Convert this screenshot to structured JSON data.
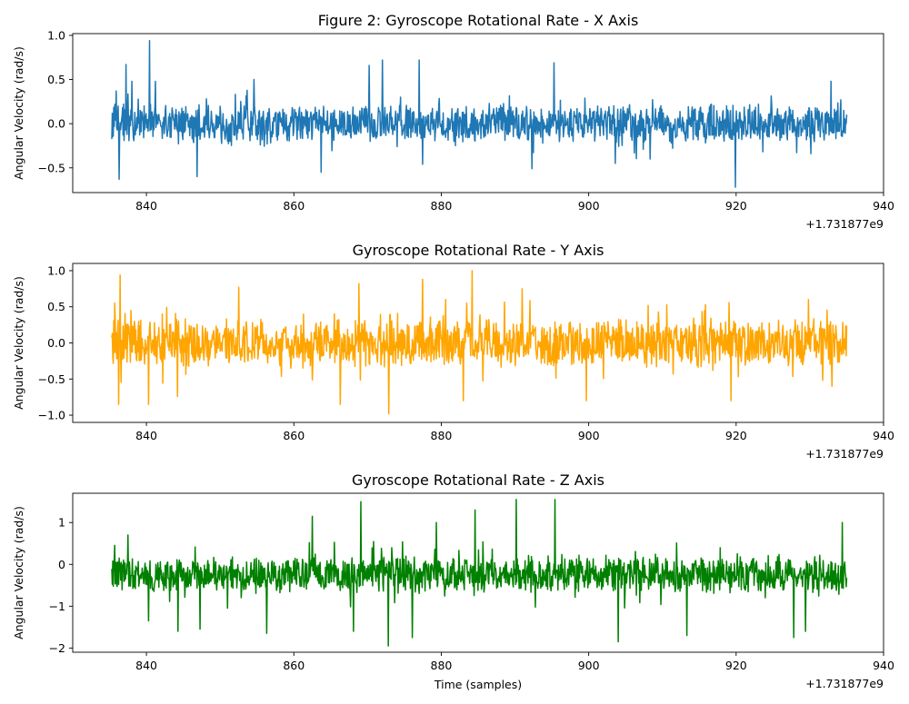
{
  "chart_data": [
    {
      "type": "line",
      "title": "Figure 2: Gyroscope Rotational Rate - X Axis",
      "xlabel": "",
      "ylabel": "Angular Velocity (rad/s)",
      "x_offset_label": "+1.731877e9",
      "xlim": [
        830,
        940
      ],
      "ylim": [
        -0.78,
        1.02
      ],
      "xticks": [
        {
          "v": 840,
          "label": "840"
        },
        {
          "v": 860,
          "label": "860"
        },
        {
          "v": 880,
          "label": "880"
        },
        {
          "v": 900,
          "label": "900"
        },
        {
          "v": 920,
          "label": "920"
        },
        {
          "v": 940,
          "label": "940"
        }
      ],
      "yticks": [
        {
          "v": -0.5,
          "label": "−0.5"
        },
        {
          "v": 0,
          "label": "0.0"
        },
        {
          "v": 0.5,
          "label": "0.5"
        },
        {
          "v": 1,
          "label": "1.0"
        }
      ],
      "color": "#1f77b4",
      "series": [
        {
          "x_start": 835.3,
          "x_end": 935.0,
          "amplitude_typical": 0.2,
          "peaks": [
            [
              835.9,
              0.37
            ],
            [
              836.3,
              -0.63
            ],
            [
              837.2,
              0.67
            ],
            [
              838.0,
              0.48
            ],
            [
              840.4,
              0.94
            ],
            [
              841.2,
              0.48
            ],
            [
              846.9,
              -0.6
            ],
            [
              854.6,
              0.5
            ],
            [
              863.7,
              -0.55
            ],
            [
              870.2,
              0.66
            ],
            [
              872.0,
              0.72
            ],
            [
              877.0,
              0.72
            ],
            [
              877.5,
              -0.46
            ],
            [
              892.3,
              -0.51
            ],
            [
              895.3,
              0.69
            ],
            [
              903.6,
              -0.45
            ],
            [
              908.3,
              -0.4
            ],
            [
              919.9,
              -0.72
            ],
            [
              932.9,
              0.48
            ]
          ]
        }
      ]
    },
    {
      "type": "line",
      "title": "Gyroscope Rotational Rate - Y Axis",
      "xlabel": "",
      "ylabel": "Angular Velocity (rad/s)",
      "x_offset_label": "+1.731877e9",
      "xlim": [
        830,
        940
      ],
      "ylim": [
        -1.1,
        1.1
      ],
      "xticks": [
        {
          "v": 840,
          "label": "840"
        },
        {
          "v": 860,
          "label": "860"
        },
        {
          "v": 880,
          "label": "880"
        },
        {
          "v": 900,
          "label": "900"
        },
        {
          "v": 920,
          "label": "920"
        },
        {
          "v": 940,
          "label": "940"
        }
      ],
      "yticks": [
        {
          "v": -1,
          "label": "−1.0"
        },
        {
          "v": -0.5,
          "label": "−0.5"
        },
        {
          "v": 0,
          "label": "0.0"
        },
        {
          "v": 0.5,
          "label": "0.5"
        },
        {
          "v": 1,
          "label": "1.0"
        }
      ],
      "color": "#ffa500",
      "series": [
        {
          "x_start": 835.3,
          "x_end": 935.0,
          "amplitude_typical": 0.3,
          "peaks": [
            [
              835.7,
              0.55
            ],
            [
              836.2,
              -0.85
            ],
            [
              836.4,
              0.94
            ],
            [
              840.3,
              -0.85
            ],
            [
              844.2,
              -0.74
            ],
            [
              852.5,
              0.77
            ],
            [
              866.3,
              -0.85
            ],
            [
              868.8,
              0.82
            ],
            [
              872.9,
              -0.98
            ],
            [
              877.5,
              0.88
            ],
            [
              880.6,
              0.6
            ],
            [
              884.2,
              1.0
            ],
            [
              883.0,
              -0.8
            ],
            [
              891.0,
              0.75
            ],
            [
              899.7,
              -0.8
            ],
            [
              919.3,
              -0.8
            ],
            [
              929.8,
              0.6
            ],
            [
              933.0,
              -0.6
            ]
          ]
        }
      ]
    },
    {
      "type": "line",
      "title": "Gyroscope Rotational Rate - Z Axis",
      "xlabel": "Time (samples)",
      "ylabel": "Angular Velocity (rad/s)",
      "x_offset_label": "+1.731877e9",
      "xlim": [
        830,
        940
      ],
      "ylim": [
        -2.1,
        1.7
      ],
      "xticks": [
        {
          "v": 840,
          "label": "840"
        },
        {
          "v": 860,
          "label": "860"
        },
        {
          "v": 880,
          "label": "880"
        },
        {
          "v": 900,
          "label": "900"
        },
        {
          "v": 920,
          "label": "920"
        },
        {
          "v": 940,
          "label": "940"
        }
      ],
      "yticks": [
        {
          "v": -2,
          "label": "−2"
        },
        {
          "v": -1,
          "label": "−1"
        },
        {
          "v": 0,
          "label": "0"
        },
        {
          "v": 1,
          "label": "1"
        }
      ],
      "color": "#008000",
      "series": [
        {
          "x_start": 835.3,
          "x_end": 935.0,
          "amplitude_typical": 0.4,
          "baseline": -0.25,
          "peaks": [
            [
              837.5,
              0.7
            ],
            [
              840.3,
              -1.35
            ],
            [
              844.3,
              -1.6
            ],
            [
              847.3,
              -1.55
            ],
            [
              856.3,
              -1.65
            ],
            [
              862.5,
              1.15
            ],
            [
              868.1,
              -1.6
            ],
            [
              869.1,
              1.5
            ],
            [
              872.8,
              -1.95
            ],
            [
              876.1,
              -1.75
            ],
            [
              879.3,
              1.0
            ],
            [
              884.6,
              1.3
            ],
            [
              890.2,
              1.55
            ],
            [
              895.4,
              1.55
            ],
            [
              904.0,
              -1.85
            ],
            [
              913.3,
              -1.7
            ],
            [
              927.8,
              -1.75
            ],
            [
              929.4,
              -1.6
            ],
            [
              934.4,
              1.0
            ]
          ]
        }
      ]
    }
  ]
}
